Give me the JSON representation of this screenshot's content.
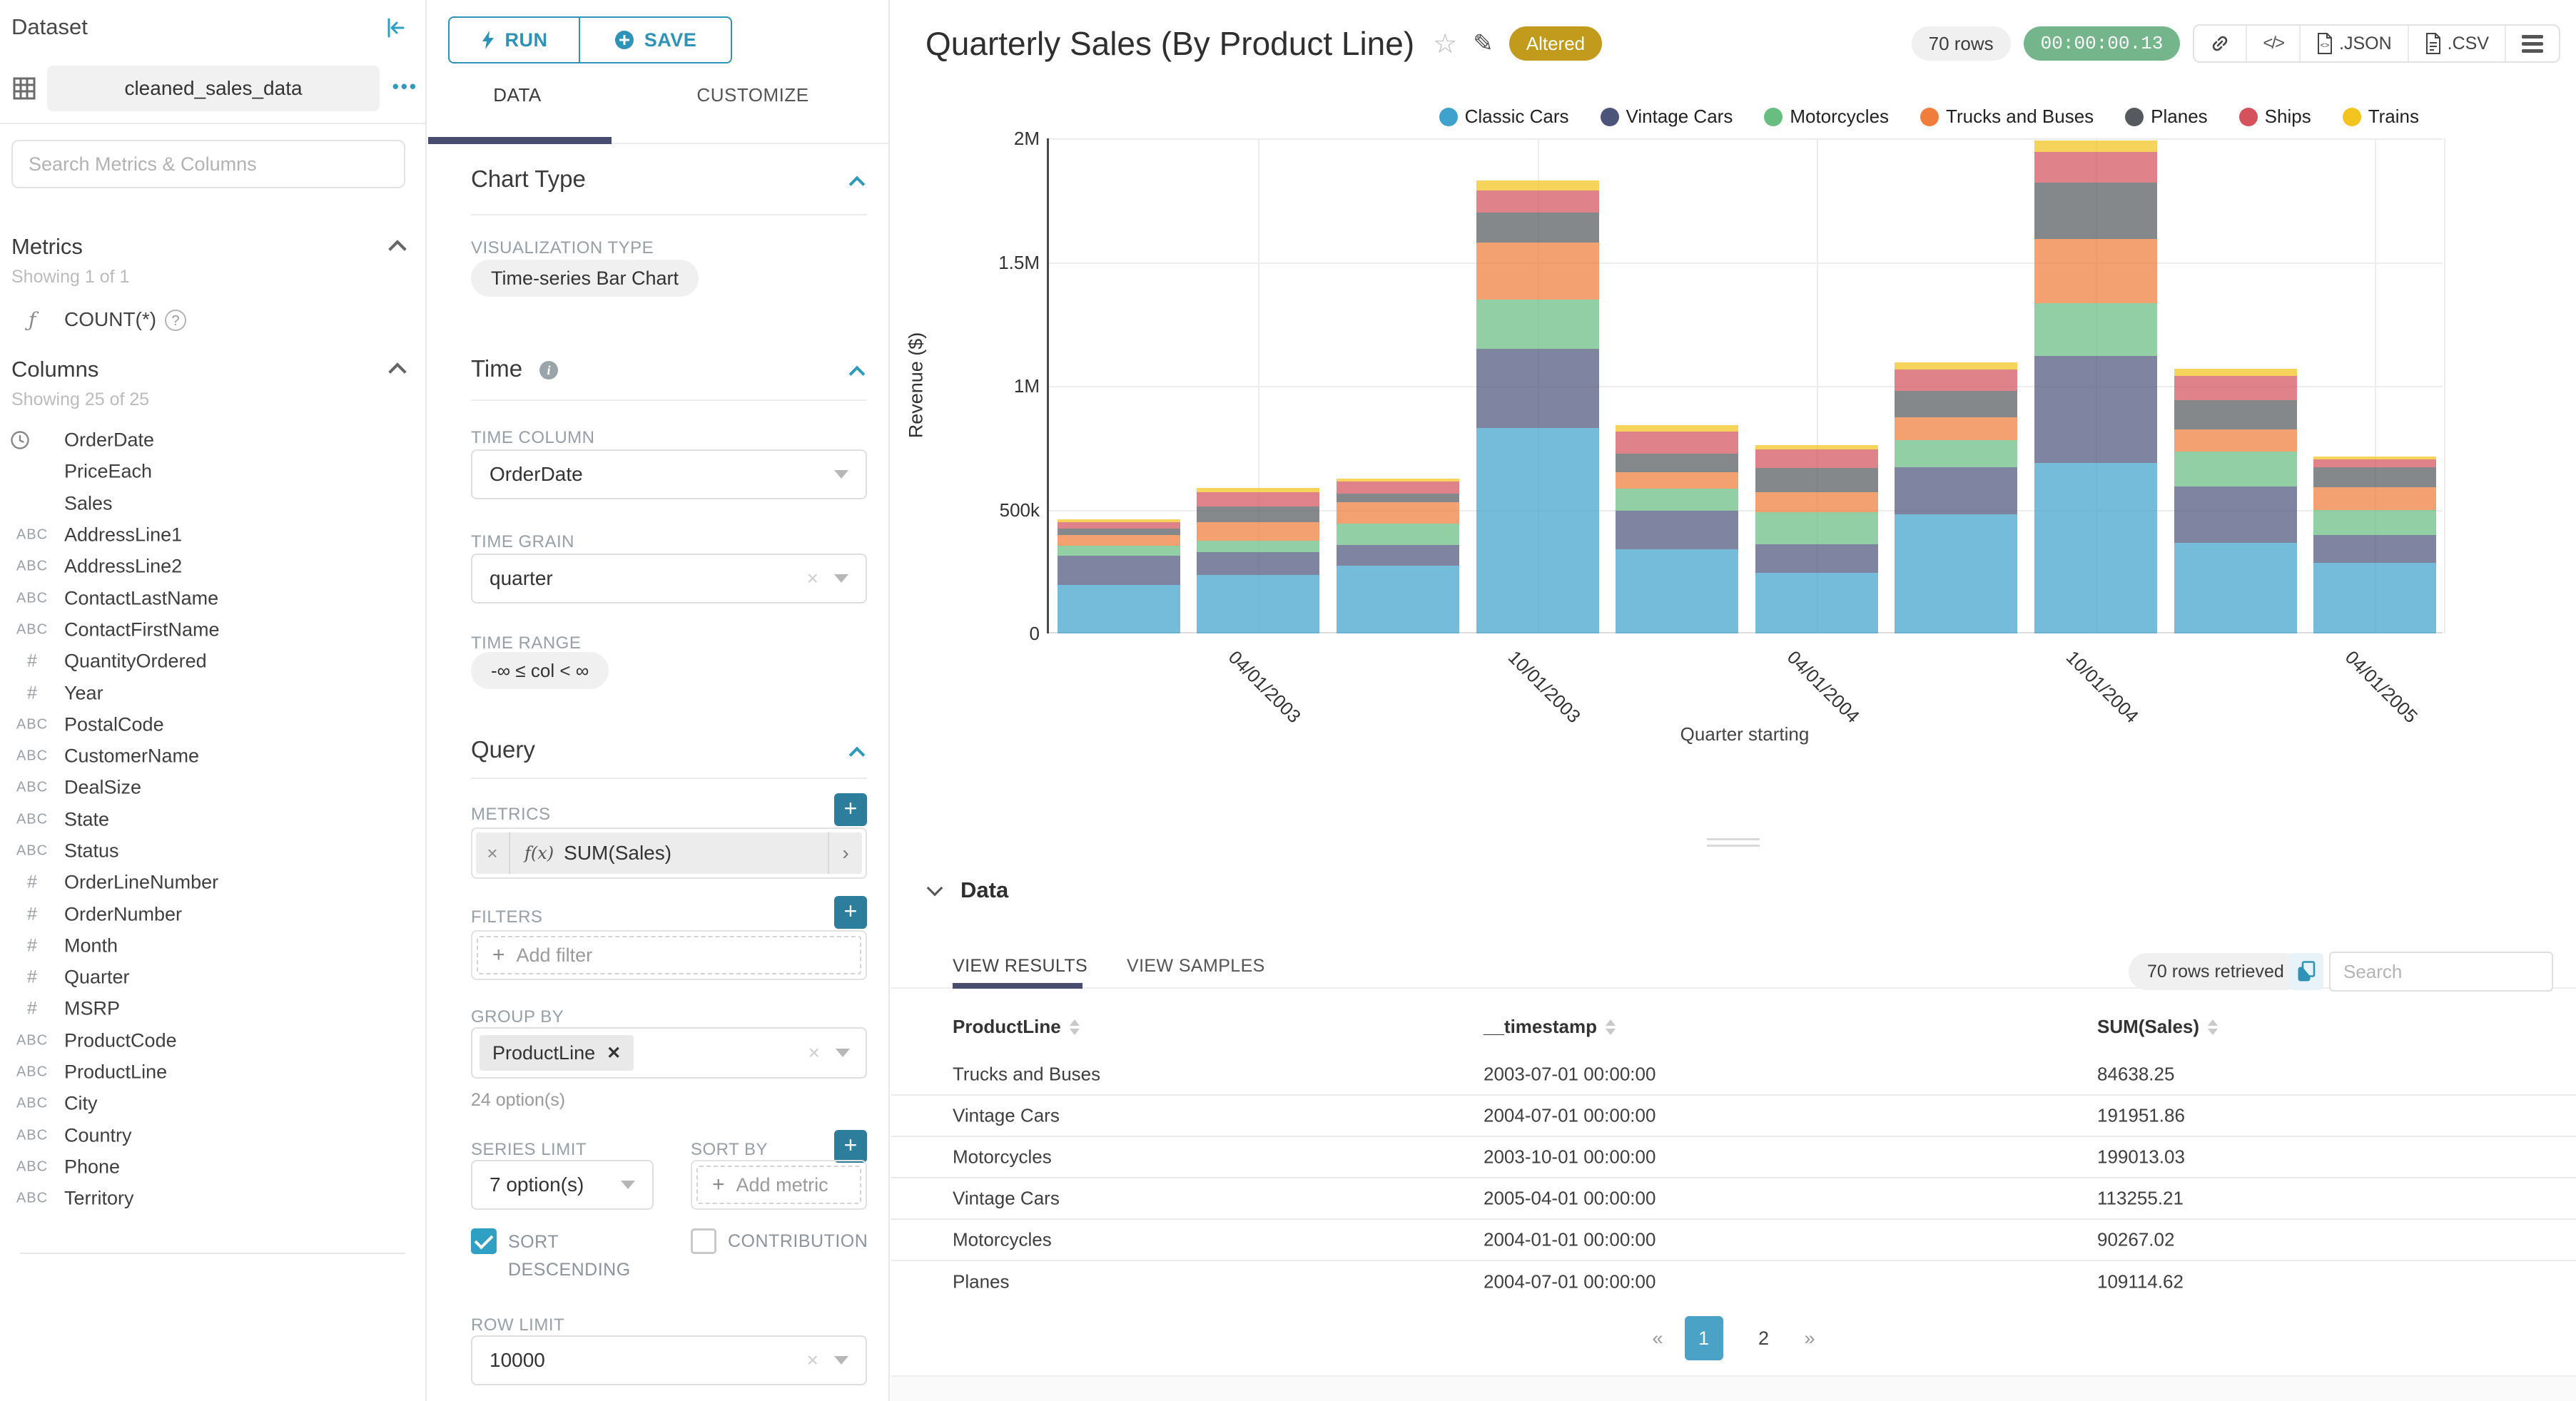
{
  "dataset_panel": {
    "title": "Dataset",
    "collapse_icon": "collapse-left",
    "dataset_icon": "table-grid",
    "dataset_name": "cleaned_sales_data",
    "more_icon": "•••",
    "search_placeholder": "Search Metrics & Columns",
    "metrics": {
      "title": "Metrics",
      "showing": "Showing 1 of 1",
      "function_icon": "ƒ",
      "items": [
        {
          "name": "COUNT(*)",
          "help_icon": "?"
        }
      ]
    },
    "columns": {
      "title": "Columns",
      "showing": "Showing 25 of 25",
      "items": [
        {
          "type": "time",
          "name": "OrderDate"
        },
        {
          "type": "none",
          "name": "PriceEach"
        },
        {
          "type": "none",
          "name": "Sales"
        },
        {
          "type": "str",
          "name": "AddressLine1"
        },
        {
          "type": "str",
          "name": "AddressLine2"
        },
        {
          "type": "str",
          "name": "ContactLastName"
        },
        {
          "type": "str",
          "name": "ContactFirstName"
        },
        {
          "type": "num",
          "name": "QuantityOrdered"
        },
        {
          "type": "num",
          "name": "Year"
        },
        {
          "type": "str",
          "name": "PostalCode"
        },
        {
          "type": "str",
          "name": "CustomerName"
        },
        {
          "type": "str",
          "name": "DealSize"
        },
        {
          "type": "str",
          "name": "State"
        },
        {
          "type": "str",
          "name": "Status"
        },
        {
          "type": "num",
          "name": "OrderLineNumber"
        },
        {
          "type": "num",
          "name": "OrderNumber"
        },
        {
          "type": "num",
          "name": "Month"
        },
        {
          "type": "num",
          "name": "Quarter"
        },
        {
          "type": "num",
          "name": "MSRP"
        },
        {
          "type": "str",
          "name": "ProductCode"
        },
        {
          "type": "str",
          "name": "ProductLine"
        },
        {
          "type": "str",
          "name": "City"
        },
        {
          "type": "str",
          "name": "Country"
        },
        {
          "type": "str",
          "name": "Phone"
        },
        {
          "type": "str",
          "name": "Territory"
        }
      ]
    }
  },
  "controls": {
    "run_label": "RUN",
    "save_label": "SAVE",
    "tabs": {
      "data": "DATA",
      "customize": "CUSTOMIZE"
    },
    "chart_type": {
      "title": "Chart Type",
      "viz_label": "VISUALIZATION TYPE",
      "viz_value": "Time-series Bar Chart"
    },
    "time": {
      "title": "Time",
      "column_label": "TIME COLUMN",
      "column_value": "OrderDate",
      "grain_label": "TIME GRAIN",
      "grain_value": "quarter",
      "range_label": "TIME RANGE",
      "range_value": "-∞ ≤ col < ∞"
    },
    "query": {
      "title": "Query",
      "metrics_label": "METRICS",
      "metric_fx": "f(x)",
      "metric_value": "SUM(Sales)",
      "filters_label": "FILTERS",
      "add_filter_label": "Add filter",
      "group_by_label": "GROUP BY",
      "group_by_value": "ProductLine",
      "group_by_hint": "24 option(s)",
      "series_limit_label": "SERIES LIMIT",
      "series_limit_value": "7 option(s)",
      "sort_by_label": "SORT BY",
      "add_metric_label": "Add metric",
      "sort_descending_label": "SORT DESCENDING",
      "sort_descending_checked": true,
      "contribution_label": "CONTRIBUTION",
      "contribution_checked": false,
      "row_limit_label": "ROW LIMIT",
      "row_limit_value": "10000"
    }
  },
  "chart_header": {
    "title": "Quarterly Sales (By Product Line)",
    "altered_badge": "Altered",
    "rows_badge": "70 rows",
    "timer": "00:00:00.13",
    "export_json_label": ".JSON",
    "export_csv_label": ".CSV"
  },
  "chart_data": {
    "type": "bar",
    "stacked": true,
    "title": "Quarterly Sales (By Product Line)",
    "xlabel": "Quarter starting",
    "ylabel": "Revenue ($)",
    "ylim": [
      0,
      2000000
    ],
    "grid": true,
    "legend_position": "top-right",
    "x": [
      "2003-01-01",
      "2003-04-01",
      "2003-07-01",
      "2003-10-01",
      "2004-01-01",
      "2004-04-01",
      "2004-07-01",
      "2004-10-01",
      "2005-01-01",
      "2005-04-01"
    ],
    "x_axis_ticks": [
      {
        "band_index": 1,
        "label": "04/01/2003"
      },
      {
        "band_index": 3,
        "label": "10/01/2003"
      },
      {
        "band_index": 5,
        "label": "04/01/2004"
      },
      {
        "band_index": 7,
        "label": "10/01/2004"
      },
      {
        "band_index": 9,
        "label": "04/01/2005"
      }
    ],
    "y_ticks": [
      {
        "value": 0,
        "label": "0"
      },
      {
        "value": 500000,
        "label": "500k"
      },
      {
        "value": 1000000,
        "label": "1M"
      },
      {
        "value": 1500000,
        "label": "1.5M"
      },
      {
        "value": 2000000,
        "label": "2M"
      }
    ],
    "series": [
      {
        "name": "Classic Cars",
        "color": "#3FA2CC",
        "values": [
          196000,
          237000,
          275000,
          830000,
          340000,
          245000,
          480000,
          690000,
          367000,
          285000
        ]
      },
      {
        "name": "Vintage Cars",
        "color": "#4D547C",
        "values": [
          119000,
          93000,
          83000,
          320000,
          155000,
          115000,
          191951.86,
          430000,
          227000,
          113255.21
        ]
      },
      {
        "name": "Motorcycles",
        "color": "#68BD81",
        "values": [
          40000,
          46000,
          87000,
          199013.03,
          90267.02,
          130000,
          110000,
          215000,
          140000,
          99000
        ]
      },
      {
        "name": "Trucks and Buses",
        "color": "#F07D3C",
        "values": [
          44000,
          75000,
          84638.25,
          230000,
          65000,
          80000,
          90000,
          260000,
          90000,
          93000
        ]
      },
      {
        "name": "Planes",
        "color": "#565A5E",
        "values": [
          26000,
          63000,
          35000,
          120000,
          75000,
          100000,
          109114.62,
          225000,
          119000,
          81000
        ]
      },
      {
        "name": "Ships",
        "color": "#D4525C",
        "values": [
          26000,
          58000,
          50000,
          90000,
          90000,
          75000,
          85000,
          125000,
          97000,
          33000
        ]
      },
      {
        "name": "Trains",
        "color": "#F3C41D",
        "values": [
          10000,
          15000,
          10000,
          40000,
          25000,
          15000,
          30000,
          45000,
          30000,
          11000
        ]
      }
    ]
  },
  "data_panel": {
    "title": "Data",
    "tabs": {
      "results": "VIEW RESULTS",
      "samples": "VIEW SAMPLES"
    },
    "rows_retrieved": "70 rows retrieved",
    "copy_icon": "copy",
    "search_placeholder": "Search",
    "columns": [
      "ProductLine",
      "__timestamp",
      "SUM(Sales)"
    ],
    "rows": [
      [
        "Trucks and Buses",
        "2003-07-01 00:00:00",
        "84638.25"
      ],
      [
        "Vintage Cars",
        "2004-07-01 00:00:00",
        "191951.86"
      ],
      [
        "Motorcycles",
        "2003-10-01 00:00:00",
        "199013.03"
      ],
      [
        "Vintage Cars",
        "2005-04-01 00:00:00",
        "113255.21"
      ],
      [
        "Motorcycles",
        "2004-01-01 00:00:00",
        "90267.02"
      ],
      [
        "Planes",
        "2004-07-01 00:00:00",
        "109114.62"
      ]
    ],
    "pagination": {
      "prev": "«",
      "pages": [
        "1",
        "2"
      ],
      "active": "1",
      "next": "»"
    }
  },
  "colors": {
    "accent_teal": "#2E93B6",
    "tab_underline": "#484C6F",
    "altered_badge": "#C29B1C",
    "timer_green": "#74B58B",
    "pagination_active": "#4BA2C7",
    "plus_button": "#2C7E9C",
    "checkbox_checked": "#2FA0C4",
    "bar_opacity": 0.72
  }
}
